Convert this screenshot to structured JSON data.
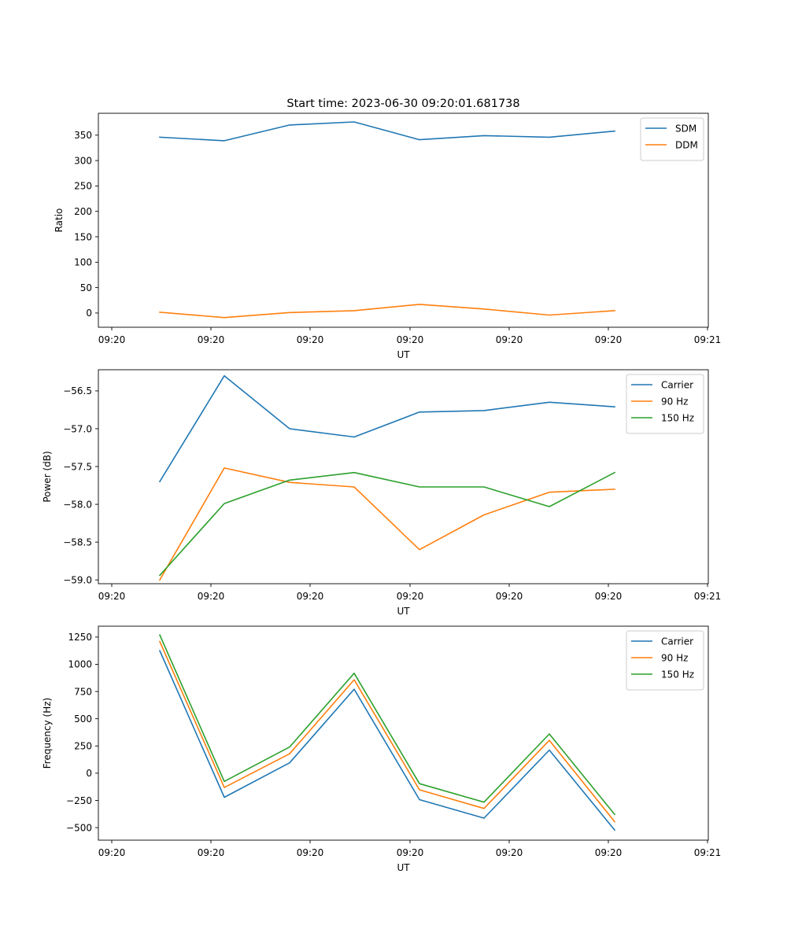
{
  "figure_title": "Start time: 2023-06-30 09:20:01.681738",
  "chart_data": [
    {
      "type": "line",
      "xlabel": "UT",
      "ylabel": "Ratio",
      "x_tick_labels": [
        "09:20",
        "09:20",
        "09:20",
        "09:20",
        "09:20",
        "09:20",
        "09:21"
      ],
      "ylim": [
        -28,
        393
      ],
      "y_ticks": [
        0,
        50,
        100,
        150,
        200,
        250,
        300,
        350
      ],
      "y_tick_labels": [
        "0",
        "50",
        "100",
        "150",
        "200",
        "250",
        "300",
        "350"
      ],
      "legend_position": "top-right",
      "series": [
        {
          "name": "SDM",
          "color": "#1f77b4",
          "values": [
            346,
            339,
            370,
            376,
            341,
            349,
            346,
            358
          ]
        },
        {
          "name": "DDM",
          "color": "#ff7f0e",
          "values": [
            1.6,
            -9,
            1,
            4.6,
            17,
            7.9,
            -4,
            4.6
          ]
        }
      ]
    },
    {
      "type": "line",
      "xlabel": "UT",
      "ylabel": "Power (dB)",
      "x_tick_labels": [
        "09:20",
        "09:20",
        "09:20",
        "09:20",
        "09:20",
        "09:20",
        "09:21"
      ],
      "ylim": [
        -59.05,
        -56.22
      ],
      "y_ticks": [
        -59.0,
        -58.5,
        -58.0,
        -57.5,
        -57.0,
        -56.5
      ],
      "y_tick_labels": [
        "−59.0",
        "−58.5",
        "−58.0",
        "−57.5",
        "−57.0",
        "−56.5"
      ],
      "legend_position": "top-right",
      "series": [
        {
          "name": "Carrier",
          "color": "#1f77b4",
          "values": [
            -57.7,
            -56.3,
            -57.0,
            -57.11,
            -56.78,
            -56.76,
            -56.65,
            -56.71
          ]
        },
        {
          "name": "90 Hz",
          "color": "#ff7f0e",
          "values": [
            -59.0,
            -57.52,
            -57.71,
            -57.77,
            -58.6,
            -58.14,
            -57.84,
            -57.8
          ]
        },
        {
          "name": "150 Hz",
          "color": "#2ca02c",
          "values": [
            -58.94,
            -57.99,
            -57.68,
            -57.58,
            -57.77,
            -57.77,
            -58.03,
            -57.58
          ]
        }
      ]
    },
    {
      "type": "line",
      "xlabel": "UT",
      "ylabel": "Frequency (Hz)",
      "x_tick_labels": [
        "09:20",
        "09:20",
        "09:20",
        "09:20",
        "09:20",
        "09:20",
        "09:21"
      ],
      "ylim": [
        -615,
        1350
      ],
      "y_ticks": [
        -500,
        -250,
        0,
        250,
        500,
        750,
        1000,
        1250
      ],
      "y_tick_labels": [
        "−500",
        "−250",
        "0",
        "250",
        "500",
        "750",
        "1000",
        "1250"
      ],
      "legend_position": "top-right",
      "series": [
        {
          "name": "Carrier",
          "color": "#1f77b4",
          "values": [
            1125,
            -221,
            95,
            771,
            -243,
            -413,
            212,
            -522
          ]
        },
        {
          "name": "90 Hz",
          "color": "#ff7f0e",
          "values": [
            1209,
            -132,
            178,
            858,
            -153,
            -324,
            302,
            -445
          ]
        },
        {
          "name": "150 Hz",
          "color": "#2ca02c",
          "values": [
            1270,
            -75,
            240,
            918,
            -96,
            -266,
            360,
            -379
          ]
        }
      ]
    }
  ]
}
